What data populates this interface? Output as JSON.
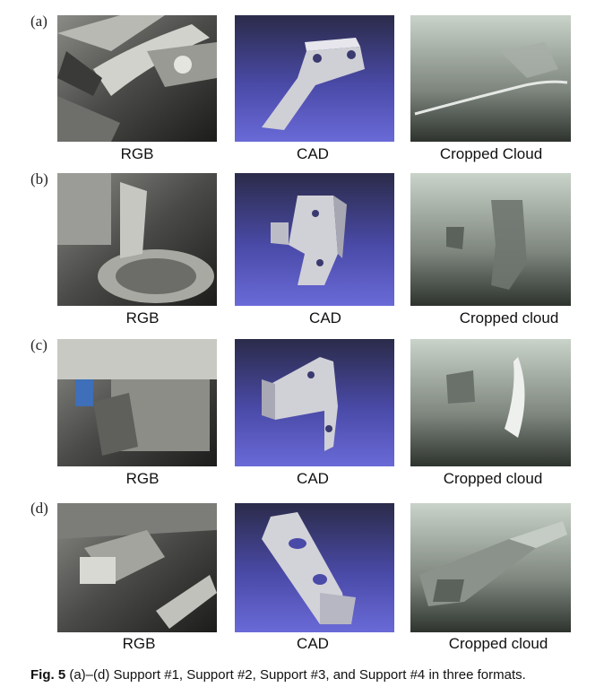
{
  "rows": [
    {
      "label": "(a)",
      "captions": [
        "RGB",
        "CAD",
        "Cropped Cloud"
      ]
    },
    {
      "label": "(b)",
      "captions": [
        "RGB",
        "CAD",
        "Cropped cloud"
      ]
    },
    {
      "label": "(c)",
      "captions": [
        "RGB",
        "CAD",
        "Cropped cloud"
      ]
    },
    {
      "label": "(d)",
      "captions": [
        "RGB",
        "CAD",
        "Cropped cloud"
      ]
    }
  ],
  "figure_caption": {
    "label": "Fig. 5",
    "text": "(a)–(d) Support #1, Support #2, Support #3, and Support #4 in three formats."
  }
}
